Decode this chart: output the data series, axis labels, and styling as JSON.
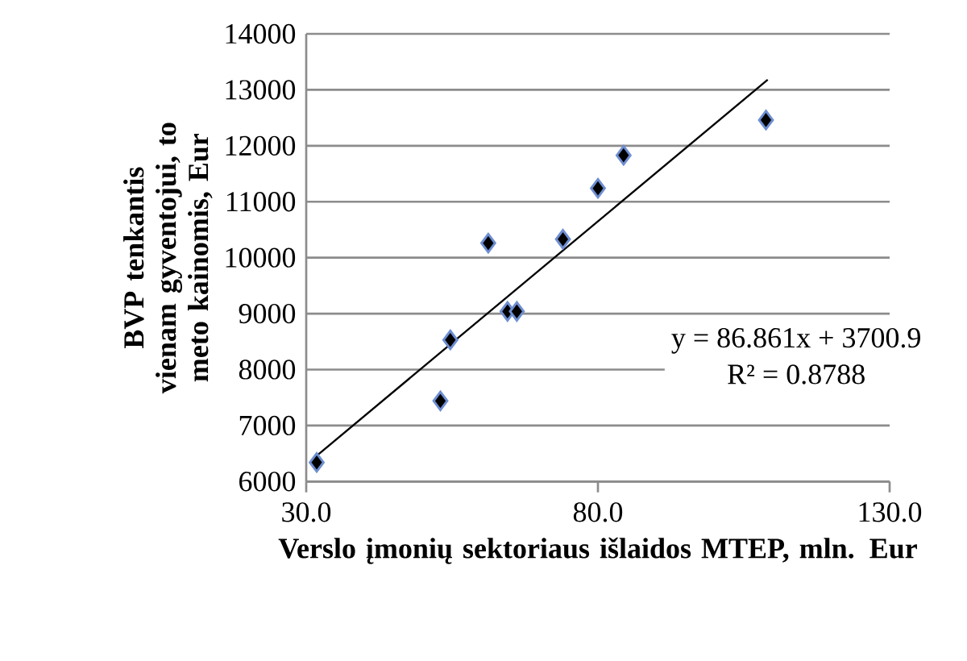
{
  "chart_data": {
    "type": "scatter",
    "xlabel": "Verslo įmonių sektoriaus išlaidos MTEP, mln. Eur",
    "ylabel": "BVP tenkantis vienam gyventojui, to meto kainomis, Eur",
    "annotations": [
      "y = 86.861x + 3700.9",
      "R² = 0.8788"
    ],
    "xlim": [
      30,
      130
    ],
    "xticks": [
      {
        "value": 30,
        "label": "30.0"
      },
      {
        "value": 80,
        "label": "80.0"
      },
      {
        "value": 130,
        "label": "130.0"
      }
    ],
    "ylim": [
      6000,
      14000
    ],
    "yticks": [
      6000,
      7000,
      8000,
      9000,
      10000,
      11000,
      12000,
      13000,
      14000
    ],
    "grid": "y",
    "marker": "diamond",
    "series": [
      {
        "color": "#000000",
        "x": [
          31.8,
          53.0,
          54.7,
          61.2,
          64.5,
          66.1,
          74.0,
          80.0,
          84.4,
          108.8
        ],
        "values": [
          6340,
          7440,
          8530,
          10260,
          9040,
          9040,
          10330,
          11240,
          11830,
          12460
        ]
      },
      {
        "type": "line",
        "color": "#000000",
        "marker": "none",
        "line_style": "solid",
        "x": [
          31.8,
          109.1
        ],
        "values": [
          6460,
          13180
        ]
      }
    ]
  }
}
